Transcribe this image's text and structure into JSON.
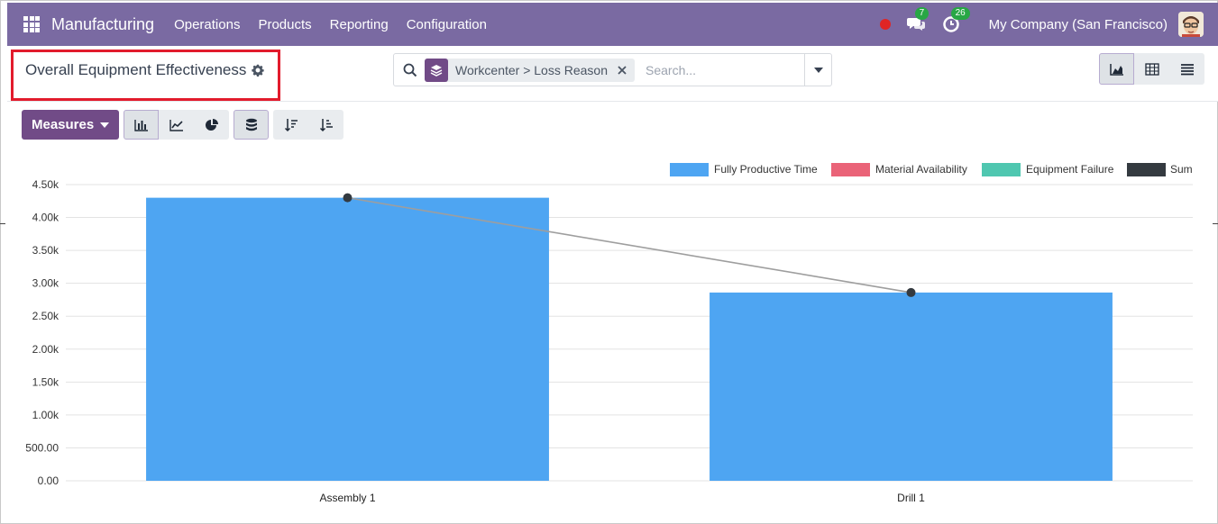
{
  "navbar": {
    "app_title": "Manufacturing",
    "menu": [
      "Operations",
      "Products",
      "Reporting",
      "Configuration"
    ],
    "messages_count": "7",
    "activities_count": "26",
    "company": "My Company (San Francisco)"
  },
  "control_panel": {
    "page_title": "Overall Equipment Effectiveness",
    "facet_label": "Workcenter > Loss Reason",
    "search_placeholder": "Search..."
  },
  "toolbar": {
    "measures_label": "Measures"
  },
  "colors": {
    "navbar": "#7a6aa2",
    "primary": "#714b87",
    "highlight": "#e21b2c",
    "bar": "#4da3f0"
  },
  "chart_data": {
    "type": "bar",
    "categories": [
      "Assembly 1",
      "Drill 1"
    ],
    "series": [
      {
        "name": "Fully Productive Time",
        "type": "bar",
        "color": "#4ea5f2",
        "values": [
          4300,
          2860
        ]
      },
      {
        "name": "Material Availability",
        "type": "bar",
        "color": "#ea6378",
        "values": [
          0,
          0
        ]
      },
      {
        "name": "Equipment Failure",
        "type": "bar",
        "color": "#4fc7b0",
        "values": [
          0,
          0
        ]
      },
      {
        "name": "Sum",
        "type": "line",
        "color": "#343a40",
        "values": [
          4300,
          2860
        ]
      }
    ],
    "yticks": [
      "0.00",
      "500.00",
      "1.00k",
      "1.50k",
      "2.00k",
      "2.50k",
      "3.00k",
      "3.50k",
      "4.00k",
      "4.50k"
    ],
    "ylim": [
      0,
      4500
    ],
    "grid": true,
    "legend_position": "top-right",
    "stacked": true
  }
}
